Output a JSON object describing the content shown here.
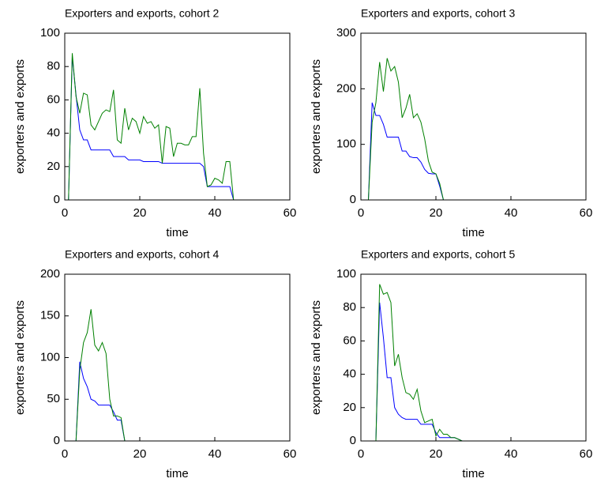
{
  "chart_data": [
    {
      "type": "line",
      "title": "Exporters and exports, cohort 2",
      "xlabel": "time",
      "ylabel": "exporters and exports",
      "x": [
        1,
        2,
        3,
        4,
        5,
        6,
        7,
        8,
        9,
        10,
        11,
        12,
        13,
        14,
        15,
        16,
        17,
        18,
        19,
        20,
        21,
        22,
        23,
        24,
        25,
        26,
        27,
        28,
        29,
        30,
        31,
        32,
        33,
        34,
        35,
        36,
        37,
        38,
        39,
        40,
        41,
        42,
        43,
        44,
        45
      ],
      "series": [
        {
          "color": "#0000ff",
          "values": [
            0,
            86,
            63,
            42,
            36,
            36,
            30,
            30,
            30,
            30,
            30,
            30,
            26,
            26,
            26,
            26,
            24,
            24,
            24,
            24,
            23,
            23,
            23,
            23,
            23,
            22,
            22,
            22,
            22,
            22,
            22,
            22,
            22,
            22,
            22,
            22,
            20,
            8,
            8,
            8,
            8,
            8,
            8,
            8,
            0
          ]
        },
        {
          "color": "#008000",
          "values": [
            0,
            88,
            62,
            52,
            64,
            63,
            45,
            42,
            47,
            52,
            54,
            53,
            66,
            36,
            34,
            55,
            42,
            49,
            47,
            40,
            50,
            46,
            47,
            43,
            45,
            22,
            44,
            43,
            26,
            34,
            34,
            33,
            33,
            38,
            38,
            67,
            28,
            8,
            9,
            13,
            12,
            10,
            23,
            23,
            0
          ]
        }
      ],
      "xlim": [
        0,
        60
      ],
      "xticks": [
        0,
        20,
        40,
        60
      ],
      "ylim": [
        0,
        100
      ],
      "yticks": [
        0,
        20,
        40,
        60,
        80,
        100
      ]
    },
    {
      "type": "line",
      "title": "Exporters and exports, cohort 3",
      "xlabel": "time",
      "ylabel": "exporters and exports",
      "x": [
        2,
        3,
        4,
        5,
        6,
        7,
        8,
        9,
        10,
        11,
        12,
        13,
        14,
        15,
        16,
        17,
        18,
        19,
        20,
        21,
        22,
        23,
        24,
        25,
        26,
        27,
        28,
        29,
        30,
        31,
        32,
        33,
        34,
        35,
        36,
        37,
        38,
        39,
        40,
        41,
        42,
        43,
        44,
        45
      ],
      "series": [
        {
          "color": "#0000ff",
          "values": [
            0,
            175,
            152,
            152,
            136,
            113,
            113,
            113,
            113,
            88,
            88,
            78,
            76,
            76,
            68,
            55,
            48,
            47,
            47,
            25,
            0,
            0,
            0,
            0,
            0,
            0,
            0,
            0,
            0,
            0,
            0,
            0,
            0,
            0,
            0,
            0,
            0,
            0,
            0,
            0,
            0,
            0,
            0,
            0
          ]
        },
        {
          "color": "#008000",
          "values": [
            0,
            140,
            175,
            248,
            195,
            255,
            232,
            240,
            212,
            148,
            165,
            190,
            148,
            155,
            140,
            110,
            70,
            50,
            47,
            30,
            0,
            0,
            0,
            0,
            0,
            0,
            0,
            0,
            0,
            0,
            0,
            0,
            0,
            0,
            0,
            0,
            0,
            0,
            0,
            0,
            0,
            0,
            0,
            0
          ]
        }
      ],
      "xlim": [
        0,
        60
      ],
      "xticks": [
        0,
        20,
        40,
        60
      ],
      "ylim": [
        0,
        300
      ],
      "yticks": [
        0,
        100,
        200,
        300
      ]
    },
    {
      "type": "line",
      "title": "Exporters and exports, cohort 4",
      "xlabel": "time",
      "ylabel": "exporters and exports",
      "x": [
        3,
        4,
        5,
        6,
        7,
        8,
        9,
        10,
        11,
        12,
        13,
        14,
        15,
        16,
        17,
        18,
        19,
        20,
        21,
        22,
        23,
        24,
        25,
        26,
        27,
        28,
        29,
        30,
        31,
        32,
        33,
        34,
        35,
        36,
        37,
        38,
        39,
        40,
        41,
        42,
        43,
        44,
        45
      ],
      "series": [
        {
          "color": "#0000ff",
          "values": [
            0,
            95,
            75,
            65,
            50,
            48,
            43,
            43,
            43,
            43,
            35,
            25,
            25,
            0,
            0,
            0,
            0,
            0,
            0,
            0,
            0,
            0,
            0,
            0,
            0,
            0,
            0,
            0,
            0,
            0,
            0,
            0,
            0,
            0,
            0,
            0,
            0,
            0,
            0,
            0,
            0,
            0,
            0
          ]
        },
        {
          "color": "#008000",
          "values": [
            0,
            85,
            118,
            130,
            158,
            115,
            108,
            118,
            105,
            50,
            30,
            30,
            28,
            0,
            0,
            0,
            0,
            0,
            0,
            0,
            0,
            0,
            0,
            0,
            0,
            0,
            0,
            0,
            0,
            0,
            0,
            0,
            0,
            0,
            0,
            0,
            0,
            0,
            0,
            0,
            0,
            0,
            0
          ]
        }
      ],
      "xlim": [
        0,
        60
      ],
      "xticks": [
        0,
        20,
        40,
        60
      ],
      "ylim": [
        0,
        200
      ],
      "yticks": [
        0,
        50,
        100,
        150,
        200
      ]
    },
    {
      "type": "line",
      "title": "Exporters and exports, cohort 5",
      "xlabel": "time",
      "ylabel": "exporters and exports",
      "x": [
        4,
        5,
        6,
        7,
        8,
        9,
        10,
        11,
        12,
        13,
        14,
        15,
        16,
        17,
        18,
        19,
        20,
        21,
        22,
        23,
        24,
        25,
        26,
        27,
        28,
        29,
        30,
        31,
        32,
        33,
        34,
        35,
        36,
        37,
        38,
        39,
        40,
        41,
        42,
        43,
        44,
        45
      ],
      "series": [
        {
          "color": "#0000ff",
          "values": [
            0,
            83,
            62,
            38,
            38,
            20,
            16,
            14,
            13,
            13,
            13,
            13,
            10,
            10,
            10,
            10,
            5,
            2,
            2,
            2,
            2,
            2,
            1,
            0,
            0,
            0,
            0,
            0,
            0,
            0,
            0,
            0,
            0,
            0,
            0,
            0,
            0,
            0,
            0,
            0,
            0,
            0
          ]
        },
        {
          "color": "#008000",
          "values": [
            0,
            94,
            88,
            89,
            83,
            45,
            52,
            38,
            29,
            28,
            25,
            31,
            18,
            11,
            12,
            13,
            3,
            7,
            4,
            4,
            2,
            2,
            1,
            0,
            0,
            0,
            0,
            0,
            0,
            0,
            0,
            0,
            0,
            0,
            0,
            0,
            0,
            0,
            0,
            0,
            0,
            0
          ]
        }
      ],
      "xlim": [
        0,
        60
      ],
      "xticks": [
        0,
        20,
        40,
        60
      ],
      "ylim": [
        0,
        100
      ],
      "yticks": [
        0,
        20,
        40,
        60,
        80,
        100
      ]
    }
  ]
}
